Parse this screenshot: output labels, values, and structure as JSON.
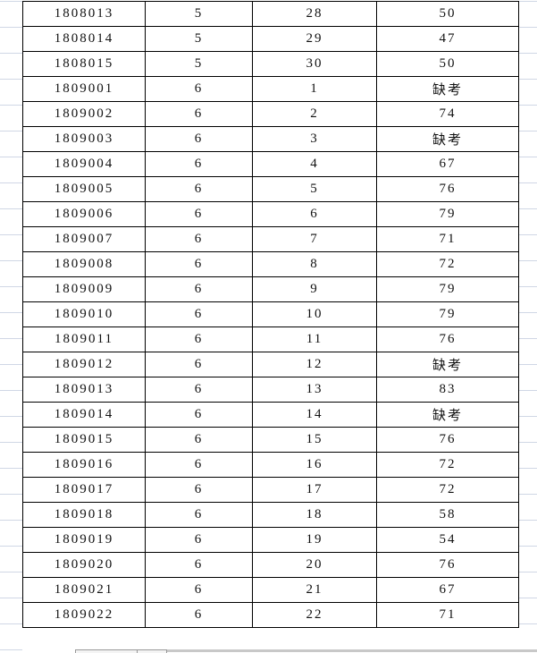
{
  "rows": [
    [
      "1808013",
      "5",
      "28",
      "50"
    ],
    [
      "1808014",
      "5",
      "29",
      "47"
    ],
    [
      "1808015",
      "5",
      "30",
      "50"
    ],
    [
      "1809001",
      "6",
      "1",
      "缺考"
    ],
    [
      "1809002",
      "6",
      "2",
      "74"
    ],
    [
      "1809003",
      "6",
      "3",
      "缺考"
    ],
    [
      "1809004",
      "6",
      "4",
      "67"
    ],
    [
      "1809005",
      "6",
      "5",
      "76"
    ],
    [
      "1809006",
      "6",
      "6",
      "79"
    ],
    [
      "1809007",
      "6",
      "7",
      "71"
    ],
    [
      "1809008",
      "6",
      "8",
      "72"
    ],
    [
      "1809009",
      "6",
      "9",
      "79"
    ],
    [
      "1809010",
      "6",
      "10",
      "79"
    ],
    [
      "1809011",
      "6",
      "11",
      "76"
    ],
    [
      "1809012",
      "6",
      "12",
      "缺考"
    ],
    [
      "1809013",
      "6",
      "13",
      "83"
    ],
    [
      "1809014",
      "6",
      "14",
      "缺考"
    ],
    [
      "1809015",
      "6",
      "15",
      "76"
    ],
    [
      "1809016",
      "6",
      "16",
      "72"
    ],
    [
      "1809017",
      "6",
      "17",
      "72"
    ],
    [
      "1809018",
      "6",
      "18",
      "58"
    ],
    [
      "1809019",
      "6",
      "19",
      "54"
    ],
    [
      "1809020",
      "6",
      "20",
      "76"
    ],
    [
      "1809021",
      "6",
      "21",
      "67"
    ],
    [
      "1809022",
      "6",
      "22",
      "71"
    ]
  ]
}
